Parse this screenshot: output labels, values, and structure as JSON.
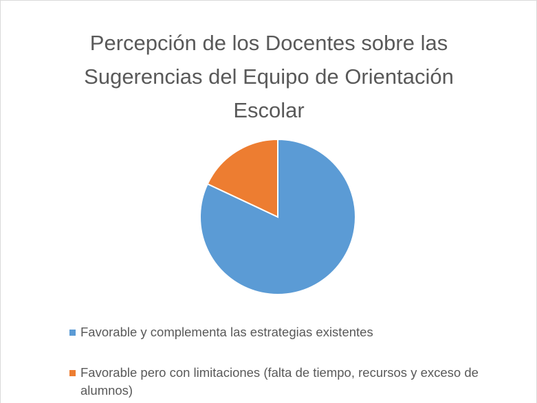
{
  "chart_data": {
    "type": "pie",
    "title": "Percepción de los Docentes sobre las Sugerencias del Equipo de Orientación Escolar",
    "categories": [
      "Favorable y complementa las estrategias existentes",
      "Favorable pero con limitaciones (falta de tiempo, recursos y exceso de alumnos)"
    ],
    "values": [
      82,
      18
    ],
    "colors": [
      "#5b9bd5",
      "#ed7d31"
    ],
    "legend": "bottom"
  }
}
